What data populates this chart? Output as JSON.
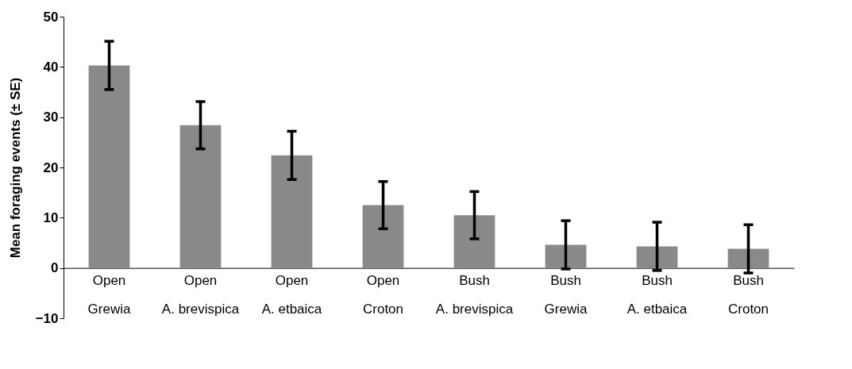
{
  "chart_data": {
    "type": "bar",
    "ylabel": "Mean foraging events (± SE)",
    "categories": [
      "Open\nGrewia",
      "Open\nA. brevispica",
      "Open\nA. etbaica",
      "Open\nCroton",
      "Bush\nA. brevispica",
      "Bush\nGrewia",
      "Bush\nA. etbaica",
      "Bush\nCroton"
    ],
    "values": [
      40.3,
      28.4,
      22.4,
      12.5,
      10.5,
      4.6,
      4.3,
      3.8
    ],
    "errors": [
      4.8,
      4.7,
      4.8,
      4.7,
      4.7,
      4.8,
      4.8,
      4.8
    ],
    "color": "#898989",
    "ylim": [
      -10,
      50
    ],
    "yticks": [
      -10,
      0,
      10,
      20,
      30,
      40,
      50
    ],
    "grid": false
  }
}
